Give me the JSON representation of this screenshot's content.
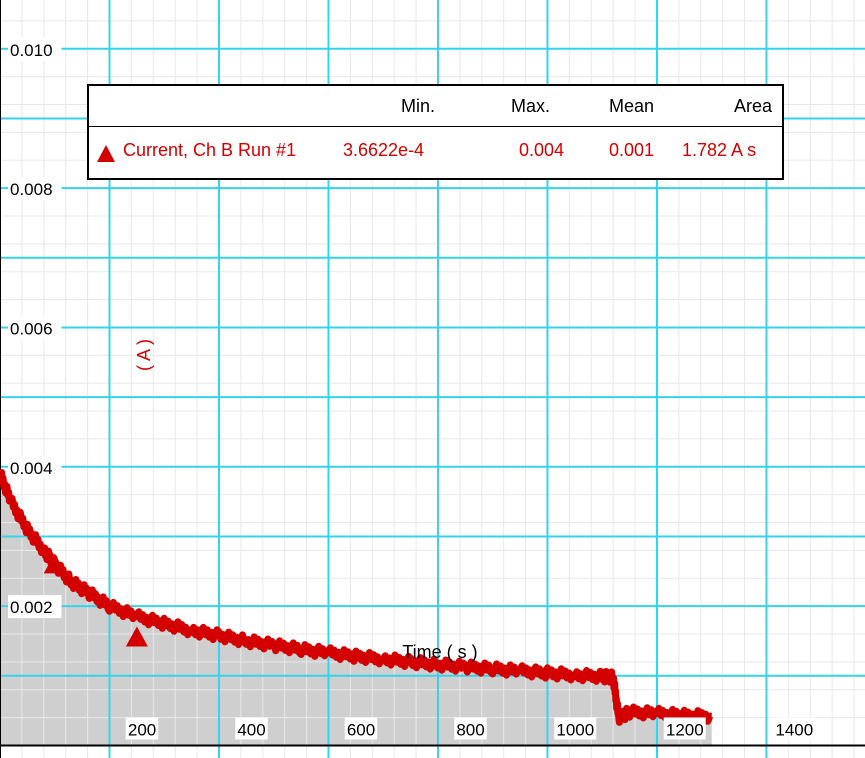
{
  "chart_data": {
    "type": "area",
    "title": "",
    "xlabel": "Time ( s )",
    "ylabel": "( A )",
    "xlim": [
      -100,
      1480
    ],
    "ylim": [
      -0.00018,
      0.0107
    ],
    "x_ticks": [
      200,
      400,
      600,
      800,
      1000,
      1200,
      1400
    ],
    "x_tick_labels": [
      "200",
      "400",
      "600",
      "800",
      "1000",
      "1200",
      "1400"
    ],
    "y_ticks": [
      0.002,
      0.004,
      0.006,
      0.008,
      0.01
    ],
    "y_tick_labels": [
      "0.002",
      "0.004",
      "0.006",
      "0.008",
      "0.010"
    ],
    "grid": true,
    "colors": {
      "series": "#d40000",
      "fill": "#cfcfcf",
      "major_grid": "#35d4ec",
      "minor_grid": "#e8e8e8"
    },
    "series": [
      {
        "name": "Current, Ch B Run #1",
        "marker": "triangle",
        "x": [
          -100,
          -80,
          -50,
          -20,
          0,
          30,
          60,
          100,
          150,
          200,
          250,
          300,
          350,
          400,
          450,
          500,
          550,
          600,
          650,
          700,
          750,
          800,
          850,
          900,
          950,
          1000,
          1020,
          1030,
          1050,
          1100,
          1150,
          1200
        ],
        "values": [
          0.0039,
          0.0035,
          0.0031,
          0.0028,
          0.0026,
          0.00235,
          0.0022,
          0.002,
          0.00185,
          0.00175,
          0.00165,
          0.00158,
          0.0015,
          0.00144,
          0.00138,
          0.00133,
          0.00128,
          0.00124,
          0.0012,
          0.00116,
          0.00113,
          0.0011,
          0.00107,
          0.00104,
          0.00101,
          0.00099,
          0.00098,
          0.0004,
          0.00048,
          0.00046,
          0.00043,
          0.00042
        ]
      }
    ],
    "stats": {
      "headers": [
        "Min.",
        "Max.",
        "Mean",
        "Area"
      ],
      "row_label": "Current, Ch B Run #1",
      "values": [
        "3.6622e-4",
        "0.004",
        "0.001",
        "1.782 A s"
      ]
    }
  }
}
